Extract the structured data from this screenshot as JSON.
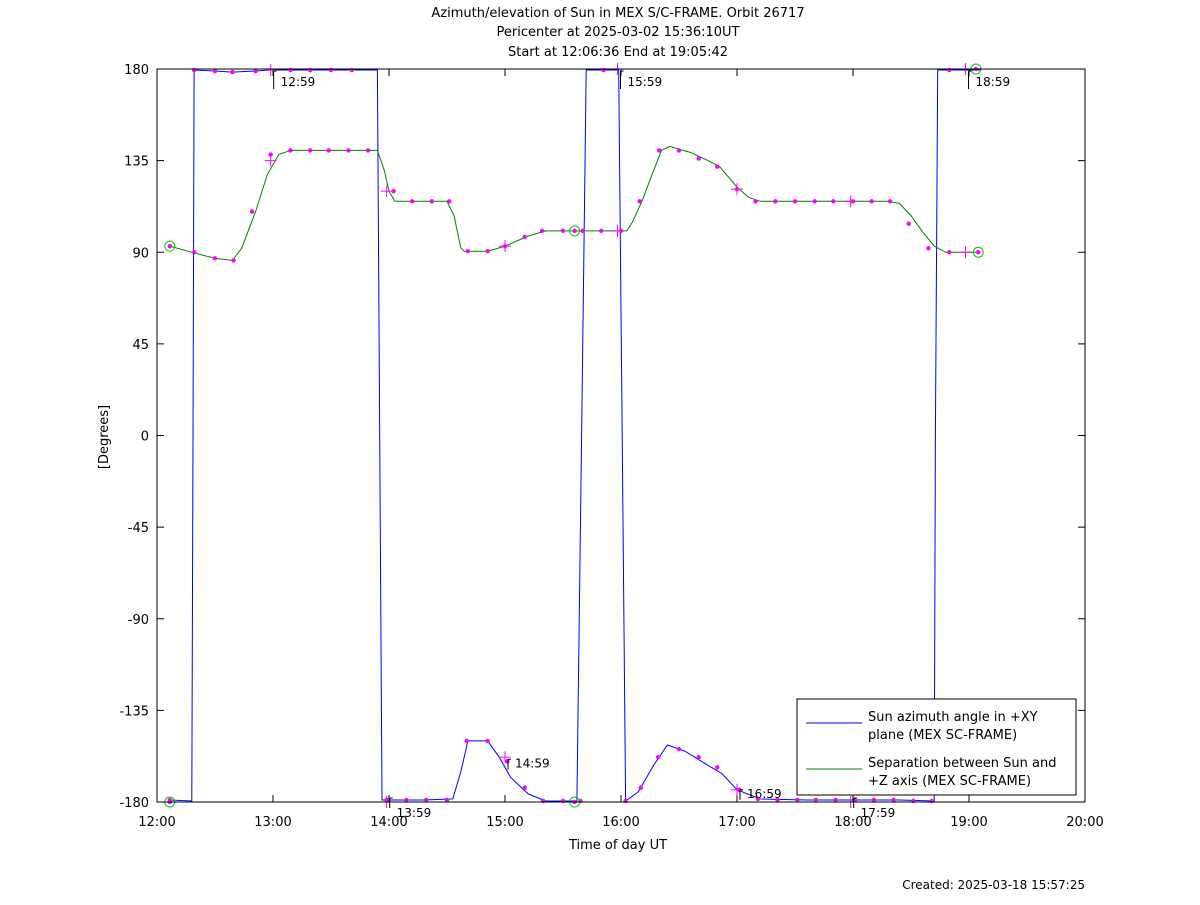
{
  "chart_data": {
    "type": "line",
    "title_lines": [
      "Azimuth/elevation of Sun in MEX S/C-FRAME.  Orbit 26717",
      "Pericenter at 2025-03-02 15:36:10UT",
      "Start at 12:06:36 End at 19:05:42"
    ],
    "xlabel": "Time of day UT",
    "ylabel": "[Degrees]",
    "footer": "Created: 2025-03-18 15:57:25",
    "xlim": [
      12.0,
      20.0
    ],
    "ylim": [
      -180,
      180
    ],
    "x_ticks": [
      {
        "v": 12,
        "label": "12:00"
      },
      {
        "v": 13,
        "label": "13:00"
      },
      {
        "v": 14,
        "label": "14:00"
      },
      {
        "v": 15,
        "label": "15:00"
      },
      {
        "v": 16,
        "label": "16:00"
      },
      {
        "v": 17,
        "label": "17:00"
      },
      {
        "v": 18,
        "label": "18:00"
      },
      {
        "v": 19,
        "label": "19:00"
      },
      {
        "v": 20,
        "label": "20:00"
      }
    ],
    "y_ticks": [
      {
        "v": 180,
        "label": "180"
      },
      {
        "v": 135,
        "label": "135"
      },
      {
        "v": 90,
        "label": "90"
      },
      {
        "v": 45,
        "label": "45"
      },
      {
        "v": 0,
        "label": "0"
      },
      {
        "v": -45,
        "label": "-45"
      },
      {
        "v": -90,
        "label": "-90"
      },
      {
        "v": -135,
        "label": "-135"
      },
      {
        "v": -180,
        "label": "-180"
      }
    ],
    "legend_position": "bottom-right",
    "series": [
      {
        "name": "Sun azimuth angle in +XY plane (MEX SC-FRAME)",
        "legend_lines": [
          "Sun azimuth angle in +XY",
          "plane (MEX SC-FRAME)"
        ],
        "color": "#0000ff",
        "points": [
          [
            12.11,
            -179
          ],
          [
            12.3,
            -179.5
          ],
          [
            12.31,
            0
          ],
          [
            12.32,
            179.5
          ],
          [
            12.5,
            179
          ],
          [
            12.65,
            178.5
          ],
          [
            12.85,
            179
          ],
          [
            12.98,
            179.5
          ],
          [
            13.3,
            179.5
          ],
          [
            13.6,
            179.5
          ],
          [
            13.9,
            179.5
          ],
          [
            13.92,
            0
          ],
          [
            13.94,
            -179
          ],
          [
            14.3,
            -179
          ],
          [
            14.55,
            -178.5
          ],
          [
            14.62,
            -165
          ],
          [
            14.68,
            -150
          ],
          [
            14.85,
            -150
          ],
          [
            14.95,
            -158
          ],
          [
            15.05,
            -168
          ],
          [
            15.2,
            -176
          ],
          [
            15.35,
            -179.5
          ],
          [
            15.62,
            -179.5
          ],
          [
            15.66,
            0
          ],
          [
            15.7,
            179.5
          ],
          [
            15.98,
            179.5
          ],
          [
            16.01,
            0
          ],
          [
            16.04,
            -179.5
          ],
          [
            16.15,
            -175
          ],
          [
            16.28,
            -162
          ],
          [
            16.4,
            -152
          ],
          [
            16.55,
            -155
          ],
          [
            16.75,
            -162
          ],
          [
            16.87,
            -166
          ],
          [
            17.0,
            -174
          ],
          [
            17.2,
            -178.5
          ],
          [
            17.6,
            -179
          ],
          [
            18.0,
            -179
          ],
          [
            18.4,
            -179
          ],
          [
            18.7,
            -179.5
          ],
          [
            18.71,
            0
          ],
          [
            18.73,
            179.5
          ],
          [
            19.0,
            179.5
          ],
          [
            19.1,
            179.5
          ]
        ],
        "markers": [
          [
            12.11,
            -179
          ],
          [
            12.32,
            179.5
          ],
          [
            12.5,
            179
          ],
          [
            12.65,
            178.5
          ],
          [
            12.85,
            179
          ],
          [
            13.15,
            179.5
          ],
          [
            13.32,
            179.5
          ],
          [
            13.5,
            179.5
          ],
          [
            13.68,
            179.5
          ],
          [
            13.98,
            -179
          ],
          [
            14.15,
            -179
          ],
          [
            14.32,
            -179
          ],
          [
            14.5,
            -179
          ],
          [
            14.67,
            -150
          ],
          [
            14.85,
            -150
          ],
          [
            15.02,
            -160
          ],
          [
            15.17,
            -173
          ],
          [
            15.33,
            -179.5
          ],
          [
            15.5,
            -179.5
          ],
          [
            15.65,
            -179.5
          ],
          [
            15.85,
            179.5
          ],
          [
            16.04,
            -179.5
          ],
          [
            16.17,
            -173
          ],
          [
            16.32,
            -158
          ],
          [
            16.5,
            -154
          ],
          [
            16.67,
            -158
          ],
          [
            16.83,
            -163
          ],
          [
            17.02,
            -174
          ],
          [
            17.18,
            -178.5
          ],
          [
            17.35,
            -179
          ],
          [
            17.52,
            -179
          ],
          [
            17.68,
            -179
          ],
          [
            17.85,
            -179
          ],
          [
            18.02,
            -179
          ],
          [
            18.18,
            -179
          ],
          [
            18.35,
            -179
          ],
          [
            18.52,
            -179.5
          ],
          [
            18.68,
            -179.5
          ],
          [
            18.83,
            179.5
          ]
        ]
      },
      {
        "name": "Separation between Sun and +Z axis (MEX SC-FRAME)",
        "legend_lines": [
          "Separation between Sun and",
          "+Z axis (MEX SC-FRAME)"
        ],
        "color": "#008000",
        "points": [
          [
            12.11,
            93
          ],
          [
            12.3,
            90
          ],
          [
            12.5,
            87
          ],
          [
            12.65,
            86
          ],
          [
            12.73,
            92
          ],
          [
            12.85,
            110
          ],
          [
            12.95,
            128
          ],
          [
            13.05,
            138
          ],
          [
            13.15,
            140
          ],
          [
            13.5,
            140
          ],
          [
            13.9,
            140
          ],
          [
            13.96,
            130
          ],
          [
            14.0,
            120
          ],
          [
            14.05,
            115
          ],
          [
            14.5,
            115
          ],
          [
            14.56,
            108
          ],
          [
            14.62,
            92
          ],
          [
            14.65,
            90.5
          ],
          [
            14.85,
            90.5
          ],
          [
            15.0,
            93
          ],
          [
            15.2,
            98
          ],
          [
            15.35,
            100.5
          ],
          [
            15.6,
            100.5
          ],
          [
            16.05,
            100.5
          ],
          [
            16.1,
            105
          ],
          [
            16.18,
            115
          ],
          [
            16.28,
            130
          ],
          [
            16.35,
            140
          ],
          [
            16.42,
            142
          ],
          [
            16.6,
            139
          ],
          [
            16.75,
            135
          ],
          [
            16.85,
            132
          ],
          [
            17.0,
            122
          ],
          [
            17.1,
            117
          ],
          [
            17.2,
            115
          ],
          [
            17.6,
            115
          ],
          [
            18.0,
            115
          ],
          [
            18.3,
            115
          ],
          [
            18.4,
            114
          ],
          [
            18.5,
            108
          ],
          [
            18.6,
            100
          ],
          [
            18.7,
            93
          ],
          [
            18.8,
            90
          ],
          [
            19.1,
            90
          ]
        ],
        "markers": [
          [
            12.11,
            93
          ],
          [
            12.32,
            90
          ],
          [
            12.5,
            87
          ],
          [
            12.66,
            86
          ],
          [
            12.82,
            110
          ],
          [
            12.98,
            138
          ],
          [
            13.15,
            140
          ],
          [
            13.32,
            140
          ],
          [
            13.48,
            140
          ],
          [
            13.65,
            140
          ],
          [
            13.82,
            140
          ],
          [
            14.04,
            120
          ],
          [
            14.2,
            115
          ],
          [
            14.37,
            115
          ],
          [
            14.52,
            115
          ],
          [
            14.68,
            90.5
          ],
          [
            14.85,
            90.5
          ],
          [
            15.0,
            93
          ],
          [
            15.17,
            97.5
          ],
          [
            15.32,
            100.5
          ],
          [
            15.5,
            100.5
          ],
          [
            15.67,
            100.5
          ],
          [
            15.83,
            100.5
          ],
          [
            16.0,
            100.5
          ],
          [
            16.16,
            115
          ],
          [
            16.33,
            140
          ],
          [
            16.5,
            140
          ],
          [
            16.67,
            136
          ],
          [
            16.83,
            132
          ],
          [
            17.0,
            121
          ],
          [
            17.16,
            115
          ],
          [
            17.33,
            115
          ],
          [
            17.5,
            115
          ],
          [
            17.67,
            115
          ],
          [
            17.83,
            115
          ],
          [
            18.0,
            115
          ],
          [
            18.16,
            115
          ],
          [
            18.32,
            115
          ],
          [
            18.48,
            104
          ],
          [
            18.65,
            92
          ],
          [
            18.83,
            90
          ],
          [
            19.08,
            90
          ]
        ]
      }
    ],
    "circle_markers": [
      [
        12.11,
        93
      ],
      [
        12.11,
        -180
      ],
      [
        15.6,
        100.5
      ],
      [
        15.6,
        -180
      ],
      [
        19.06,
        180
      ],
      [
        19.08,
        90
      ]
    ],
    "cross_markers": [
      [
        12.98,
        179.5
      ],
      [
        12.98,
        135
      ],
      [
        13.98,
        -180
      ],
      [
        13.98,
        120
      ],
      [
        15.0,
        -158
      ],
      [
        15.0,
        93
      ],
      [
        15.97,
        180
      ],
      [
        15.97,
        100.5
      ],
      [
        17.0,
        -174
      ],
      [
        17.0,
        121
      ],
      [
        17.98,
        -180
      ],
      [
        17.98,
        115
      ],
      [
        18.97,
        180
      ],
      [
        18.97,
        90
      ]
    ],
    "time_labels": [
      {
        "t": 12.98,
        "v": 180,
        "label": "12:59"
      },
      {
        "t": 13.98,
        "v": -180,
        "label": "13:59"
      },
      {
        "t": 15.0,
        "v": -161,
        "label": "14:59"
      },
      {
        "t": 15.97,
        "v": 180,
        "label": "15:59"
      },
      {
        "t": 17.0,
        "v": -176,
        "label": "16:59"
      },
      {
        "t": 17.98,
        "v": -180,
        "label": "17:59"
      },
      {
        "t": 18.97,
        "v": 180,
        "label": "18:59"
      }
    ],
    "marker_color": "#ff00ff",
    "circle_color": "#00cc00"
  }
}
